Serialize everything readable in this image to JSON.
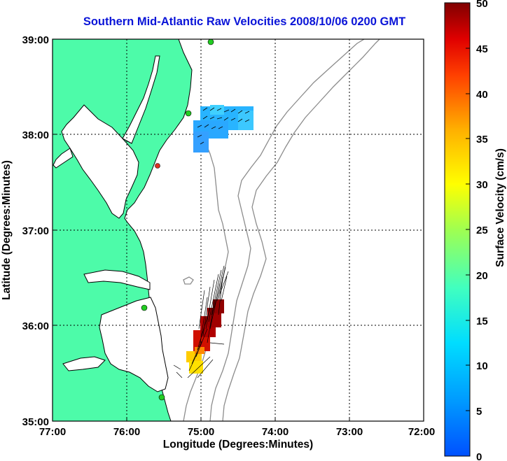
{
  "title": "Southern Mid-Atlantic Raw Velocities 2008/10/06 0200 GMT",
  "xaxis": {
    "label": "Longitude (Degrees:Minutes)",
    "ticks": [
      "77:00",
      "76:00",
      "75:00",
      "74:00",
      "73:00",
      "72:00"
    ]
  },
  "yaxis": {
    "label": "Latitude (Degrees:Minutes)",
    "ticks": [
      "39:00",
      "38:00",
      "37:00",
      "36:00",
      "35:00"
    ]
  },
  "colorbar": {
    "label": "Surface Velocity (cm/s)",
    "ticks": [
      "50",
      "45",
      "40",
      "35",
      "30",
      "25",
      "20",
      "15",
      "10",
      "5",
      "0"
    ],
    "range": [
      0,
      50
    ],
    "colormap": "jet"
  },
  "colors": {
    "land": "#4dfba9",
    "coast_line": "#000000",
    "bathymetry": "#8c8c8c",
    "station_active": "#22cc22",
    "station_alert": "#e03020",
    "title": "#0a14d8"
  },
  "map_extent": {
    "lon": [
      -77,
      -72
    ],
    "lat": [
      35,
      39
    ]
  },
  "grid": true,
  "stations": [
    {
      "status": "active"
    },
    {
      "status": "active"
    },
    {
      "status": "alert"
    },
    {
      "status": "active"
    },
    {
      "status": "active"
    }
  ]
}
